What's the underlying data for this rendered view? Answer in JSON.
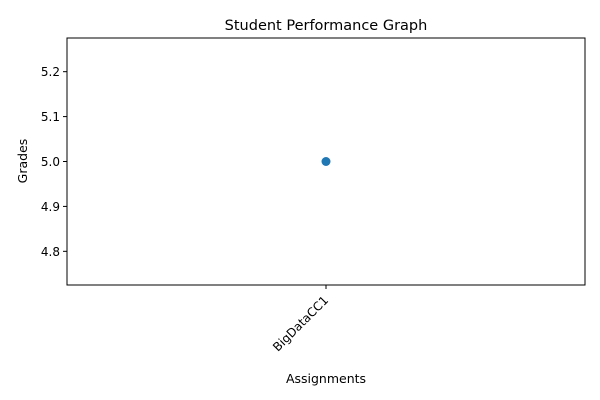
{
  "chart_data": {
    "type": "line",
    "title": "Student Performance Graph",
    "xlabel": "Assignments",
    "ylabel": "Grades",
    "categories": [
      "BigDataCC1"
    ],
    "series": [
      {
        "values": [
          5.0
        ]
      }
    ],
    "ylim": [
      4.725,
      5.275
    ],
    "yticks": [
      4.8,
      4.9,
      5.0,
      5.1,
      5.2
    ],
    "ytick_labels": [
      "4.8",
      "4.9",
      "5.0",
      "5.1",
      "5.2"
    ],
    "xtick_rotation_deg": 45,
    "grid": false,
    "legend": "none",
    "colors": {
      "series": "#1f77b4",
      "axes": "#000000",
      "background": "#ffffff"
    }
  }
}
